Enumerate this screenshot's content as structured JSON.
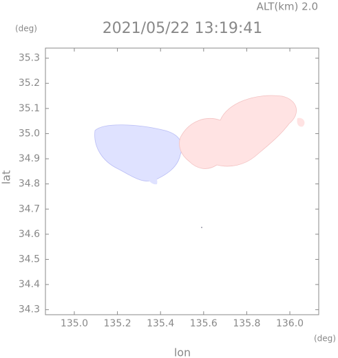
{
  "chart_data": {
    "type": "map",
    "title": "2021/05/22 13:19:41",
    "subtitle": "ALT(km) 2.0",
    "xlabel": "lon",
    "ylabel": "lat",
    "xunit": "(deg)",
    "yunit": "(deg)",
    "xlim": [
      134.866,
      136.134
    ],
    "ylim": [
      34.28,
      35.34
    ],
    "xticks": [
      {
        "value": 135,
        "label": "135.0"
      },
      135.2,
      135.4,
      135.6,
      135.8,
      {
        "value": 136,
        "label": "136.0"
      }
    ],
    "yticks": [
      35.3,
      35.2,
      35.1,
      {
        "value": 35,
        "label": "35.0"
      },
      34.9,
      34.8,
      34.7,
      34.6,
      34.5,
      34.4,
      34.3
    ]
  }
}
